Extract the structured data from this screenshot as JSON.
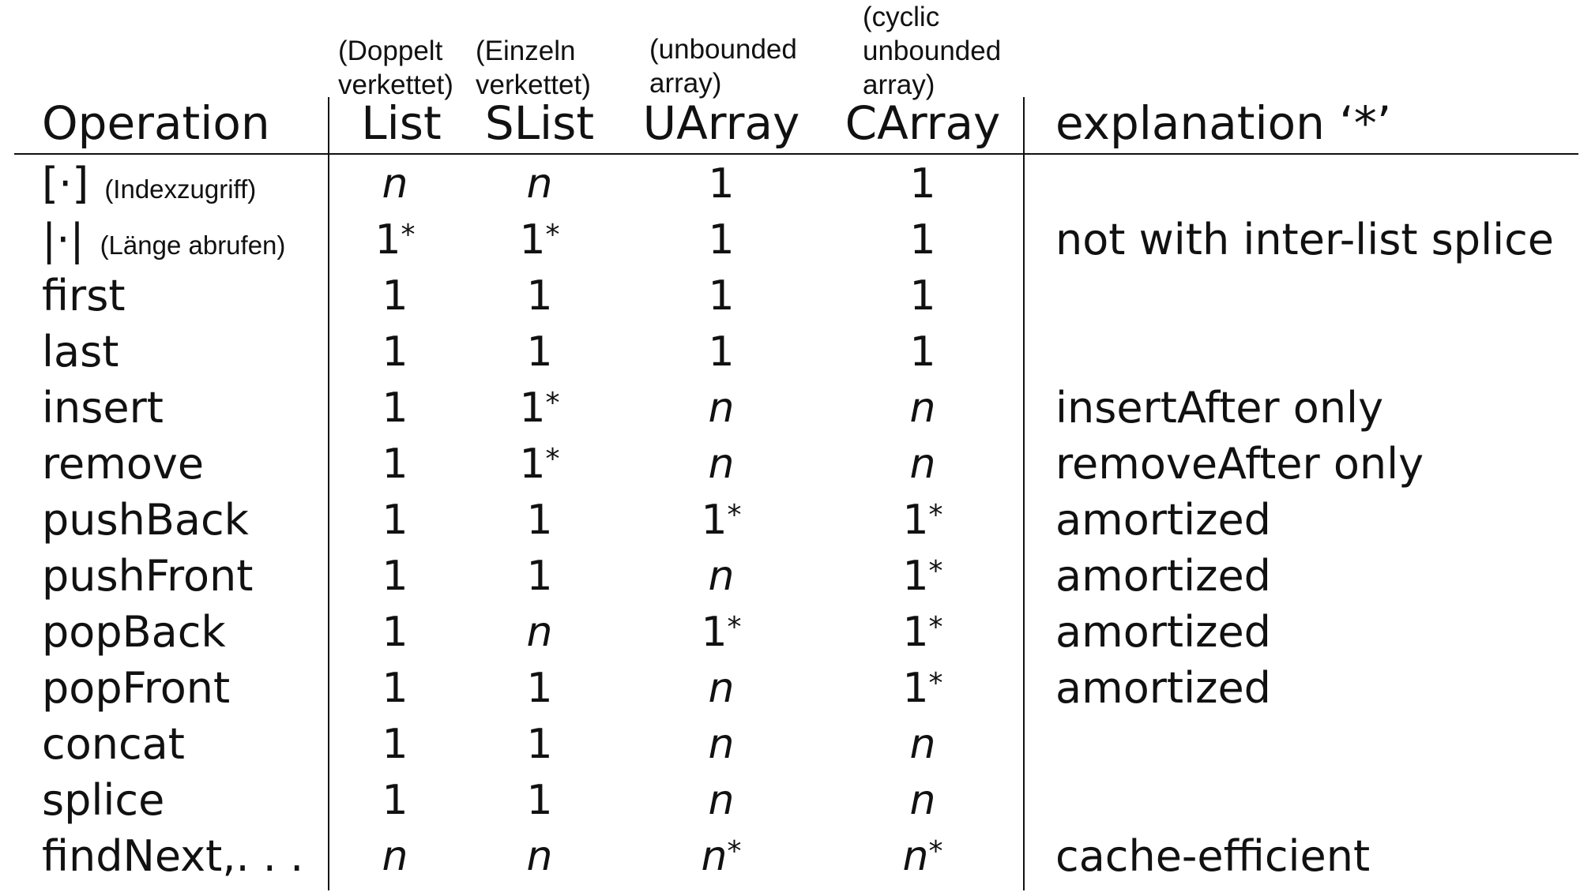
{
  "columns": {
    "operation": "Operation",
    "list": {
      "label": "List",
      "note": [
        "(Doppelt",
        "verkettet)"
      ]
    },
    "slist": {
      "label": "SList",
      "note": [
        "(Einzeln",
        "verkettet)"
      ]
    },
    "uarray": {
      "label": "UArray",
      "note": [
        "(unbounded",
        "array)"
      ]
    },
    "carray": {
      "label": "CArray",
      "note": [
        "(cyclic",
        "unbounded",
        "array)"
      ]
    },
    "explanation": "explanation ‘*’"
  },
  "rows": [
    {
      "op": "[·]",
      "op_note": "(Indexzugriff)",
      "list": "n",
      "slist": "n",
      "uarray": "1",
      "carray": "1",
      "expl": ""
    },
    {
      "op": "|·|",
      "op_note": "(Länge abrufen)",
      "list": "1*",
      "slist": "1*",
      "uarray": "1",
      "carray": "1",
      "expl": "not with inter-list splice"
    },
    {
      "op": "first",
      "op_note": "",
      "list": "1",
      "slist": "1",
      "uarray": "1",
      "carray": "1",
      "expl": ""
    },
    {
      "op": "last",
      "op_note": "",
      "list": "1",
      "slist": "1",
      "uarray": "1",
      "carray": "1",
      "expl": ""
    },
    {
      "op": "insert",
      "op_note": "",
      "list": "1",
      "slist": "1*",
      "uarray": "n",
      "carray": "n",
      "expl": "insertAfter only"
    },
    {
      "op": "remove",
      "op_note": "",
      "list": "1",
      "slist": "1*",
      "uarray": "n",
      "carray": "n",
      "expl": "removeAfter only"
    },
    {
      "op": "pushBack",
      "op_note": "",
      "list": "1",
      "slist": "1",
      "uarray": "1*",
      "carray": "1*",
      "expl": "amortized"
    },
    {
      "op": "pushFront",
      "op_note": "",
      "list": "1",
      "slist": "1",
      "uarray": "n",
      "carray": "1*",
      "expl": "amortized"
    },
    {
      "op": "popBack",
      "op_note": "",
      "list": "1",
      "slist": "n",
      "uarray": "1*",
      "carray": "1*",
      "expl": "amortized"
    },
    {
      "op": "popFront",
      "op_note": "",
      "list": "1",
      "slist": "1",
      "uarray": "n",
      "carray": "1*",
      "expl": "amortized"
    },
    {
      "op": "concat",
      "op_note": "",
      "list": "1",
      "slist": "1",
      "uarray": "n",
      "carray": "n",
      "expl": ""
    },
    {
      "op": "splice",
      "op_note": "",
      "list": "1",
      "slist": "1",
      "uarray": "n",
      "carray": "n",
      "expl": ""
    },
    {
      "op": "findNext,. . .",
      "op_note": "",
      "list": "n",
      "slist": "n",
      "uarray": "n*",
      "carray": "n*",
      "expl": "cache-efficient"
    }
  ]
}
